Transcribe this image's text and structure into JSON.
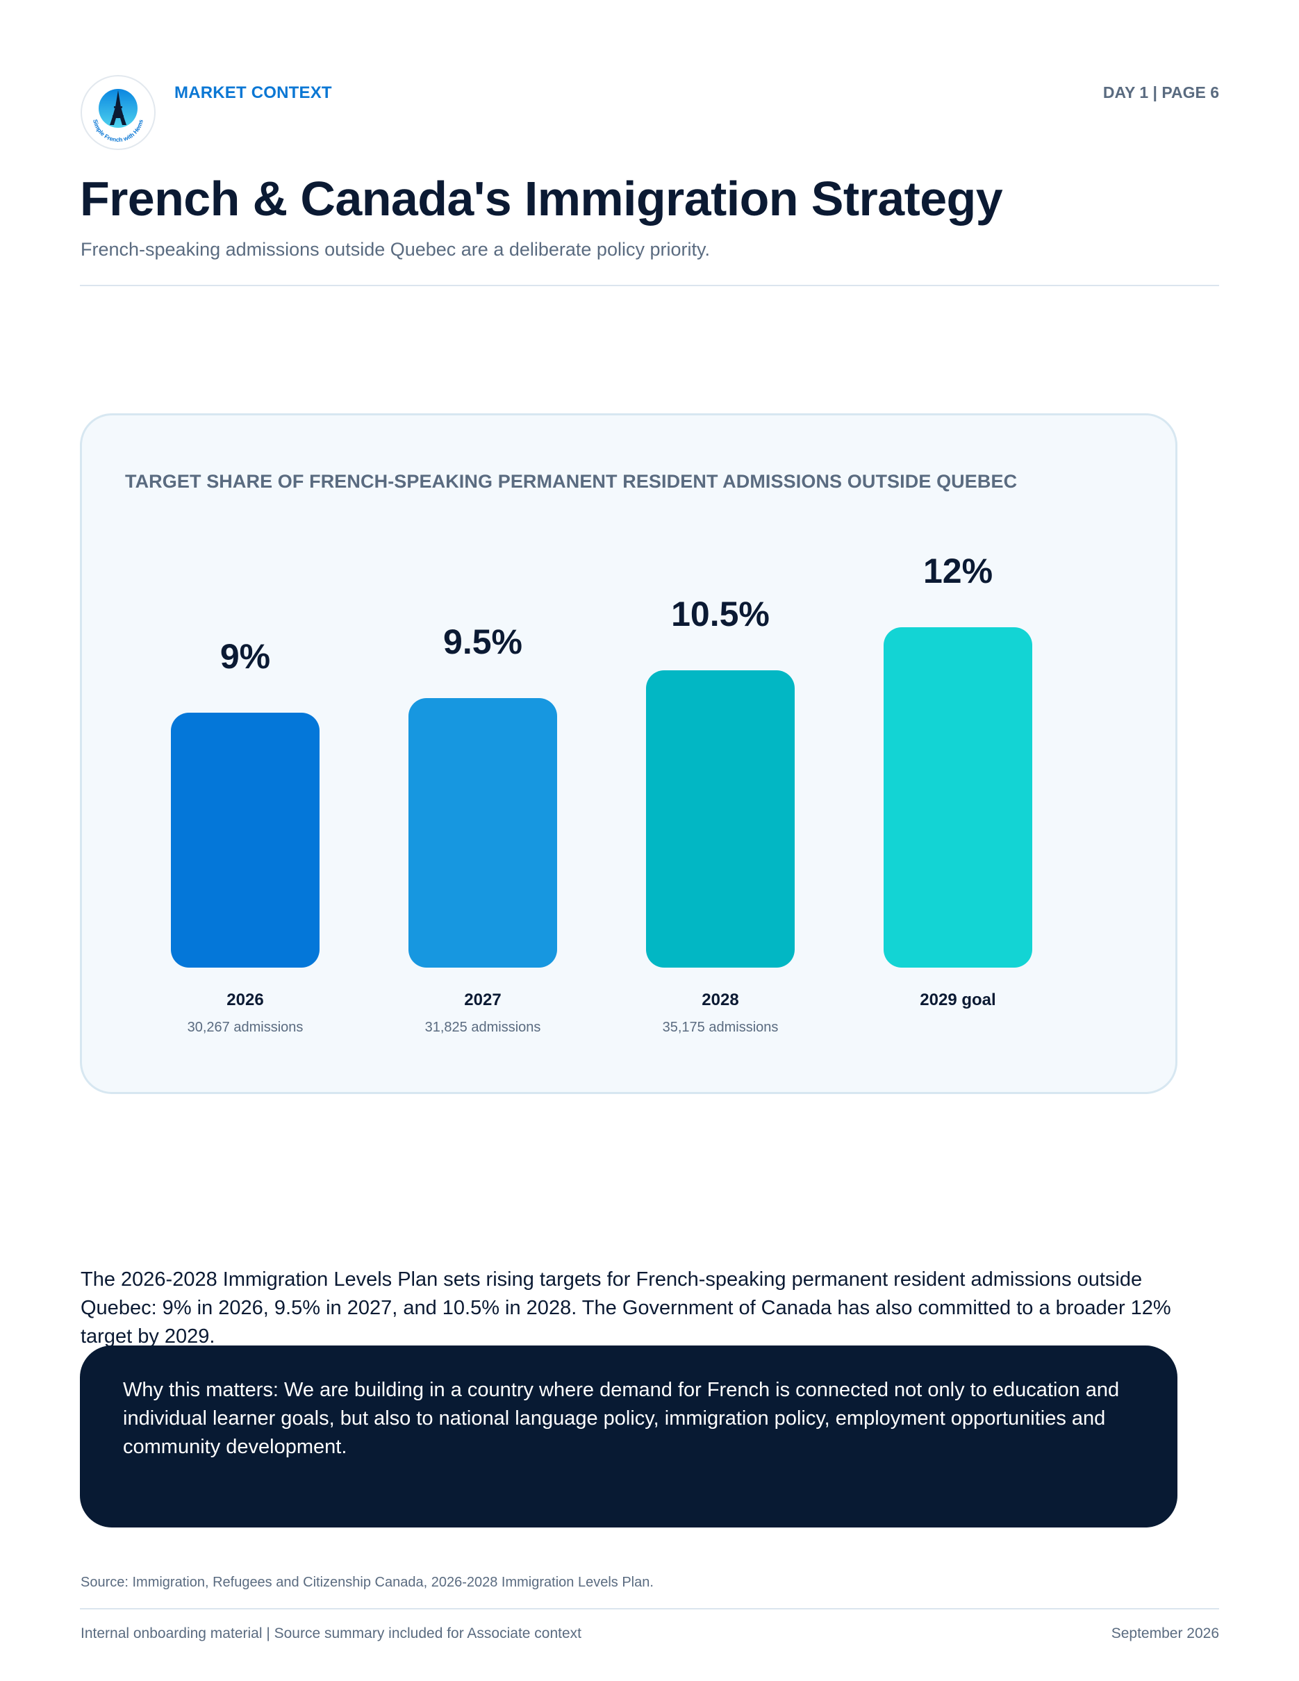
{
  "header": {
    "section_label": "MARKET CONTEXT",
    "page_label": "DAY 1 | PAGE 6",
    "logo_text": "Simple French with Hems"
  },
  "title": "French & Canada's Immigration Strategy",
  "subtitle": "French-speaking admissions outside Quebec are a deliberate policy priority.",
  "chart_data": {
    "type": "bar",
    "title": "TARGET SHARE OF FRENCH-SPEAKING PERMANENT RESIDENT ADMISSIONS OUTSIDE QUEBEC",
    "categories": [
      "2026",
      "2027",
      "2028",
      "2029 goal"
    ],
    "values": [
      9,
      9.5,
      10.5,
      12
    ],
    "value_labels": [
      "9%",
      "9.5%",
      "10.5%",
      "12%"
    ],
    "notes": [
      "30,267 admissions",
      "31,825 admissions",
      "35,175 admissions",
      ""
    ],
    "colors": [
      "#0477d9",
      "#1797e0",
      "#02b7c4",
      "#13d4d4"
    ],
    "xlabel": "",
    "ylabel": "",
    "grid": false
  },
  "body_text": "The 2026-2028 Immigration Levels Plan sets rising targets for French-speaking permanent resident admissions outside Quebec: 9% in 2026, 9.5% in 2027, and 10.5% in 2028. The Government of Canada has also committed to a broader 12% target by 2029.",
  "callout": "Why this matters: We are building in a country where demand for French is connected not only to education and individual learner goals, but also to national language policy, immigration policy, employment opportunities and community development.",
  "source": "Source: Immigration, Refugees and Citizenship Canada, 2026-2028 Immigration Levels Plan.",
  "footer": {
    "left": "Internal onboarding material | Source summary included for Associate context",
    "right": "September 2026"
  }
}
